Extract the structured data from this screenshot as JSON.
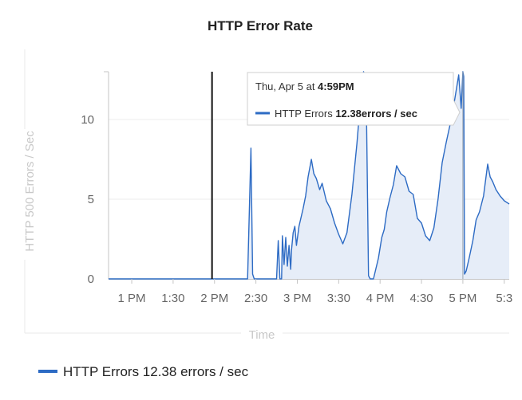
{
  "chart_data": {
    "type": "area",
    "title": "HTTP Error Rate",
    "xlabel": "Time",
    "ylabel": "HTTP 500 Errors / Sec",
    "xlim": [
      12.72,
      17.56
    ],
    "ylim": [
      0,
      13
    ],
    "x_ticks": [
      {
        "value": 13.0,
        "label": "1 PM"
      },
      {
        "value": 13.5,
        "label": "1:30"
      },
      {
        "value": 14.0,
        "label": "2 PM"
      },
      {
        "value": 14.5,
        "label": "2:30"
      },
      {
        "value": 15.0,
        "label": "3 PM"
      },
      {
        "value": 15.5,
        "label": "3:30"
      },
      {
        "value": 16.0,
        "label": "4 PM"
      },
      {
        "value": 16.5,
        "label": "4:30"
      },
      {
        "value": 17.0,
        "label": "5 PM"
      },
      {
        "value": 17.5,
        "label": "5:3"
      }
    ],
    "y_ticks": [
      0,
      5,
      10
    ],
    "grid": true,
    "annotations": {
      "vertical_marker_x": 13.97,
      "hover_x": 17.0
    },
    "series": [
      {
        "name": "HTTP Errors",
        "color": "#2d6bc4",
        "fill": "#e6edf8",
        "x": [
          12.72,
          14.4,
          14.44,
          14.46,
          14.48,
          14.5,
          14.75,
          14.77,
          14.79,
          14.81,
          14.82,
          14.84,
          14.86,
          14.88,
          14.9,
          14.92,
          14.93,
          14.95,
          14.97,
          14.99,
          15.02,
          15.07,
          15.1,
          15.13,
          15.17,
          15.2,
          15.23,
          15.27,
          15.3,
          15.35,
          15.4,
          15.45,
          15.5,
          15.55,
          15.6,
          15.66,
          15.72,
          15.77,
          15.8,
          15.83,
          15.86,
          15.88,
          15.9,
          15.92,
          15.98,
          16.02,
          16.05,
          16.08,
          16.12,
          16.16,
          16.2,
          16.25,
          16.3,
          16.35,
          16.4,
          16.45,
          16.5,
          16.55,
          16.6,
          16.65,
          16.7,
          16.75,
          16.8,
          16.85,
          16.9,
          16.95,
          16.98,
          17.0,
          17.01,
          17.02,
          17.04,
          17.08,
          17.12,
          17.16,
          17.2,
          17.25,
          17.3,
          17.33,
          17.36,
          17.4,
          17.45,
          17.5,
          17.56
        ],
        "values": [
          0,
          0,
          8.2,
          0.3,
          0,
          0,
          0,
          2.4,
          0,
          0,
          2.7,
          0.9,
          2.6,
          0.8,
          2.1,
          0.6,
          1.8,
          2.9,
          3.3,
          2.1,
          3.3,
          4.4,
          5.2,
          6.4,
          7.5,
          6.6,
          6.3,
          5.6,
          6.0,
          4.9,
          4.4,
          3.5,
          2.8,
          2.2,
          2.9,
          5.3,
          8.5,
          11.6,
          13.0,
          12.6,
          0.2,
          0,
          0,
          0,
          1.3,
          2.6,
          3.1,
          4.2,
          5.1,
          5.9,
          7.1,
          6.6,
          6.4,
          5.5,
          5.3,
          3.8,
          3.5,
          2.7,
          2.4,
          3.2,
          5.0,
          7.3,
          8.6,
          9.8,
          11.2,
          12.8,
          10.7,
          13.0,
          12.7,
          0.3,
          0.5,
          1.4,
          2.4,
          3.7,
          4.2,
          5.2,
          7.2,
          6.4,
          6.1,
          5.6,
          5.2,
          4.9,
          4.7
        ]
      }
    ]
  },
  "tooltip": {
    "date_prefix": "Thu, Apr 5 at ",
    "time": "4:59PM",
    "series_label": "HTTP Errors ",
    "value_text": "12.38errors / sec"
  },
  "legend": {
    "label": "HTTP Errors 12.38 errors / sec",
    "color": "#2d6bc4"
  }
}
